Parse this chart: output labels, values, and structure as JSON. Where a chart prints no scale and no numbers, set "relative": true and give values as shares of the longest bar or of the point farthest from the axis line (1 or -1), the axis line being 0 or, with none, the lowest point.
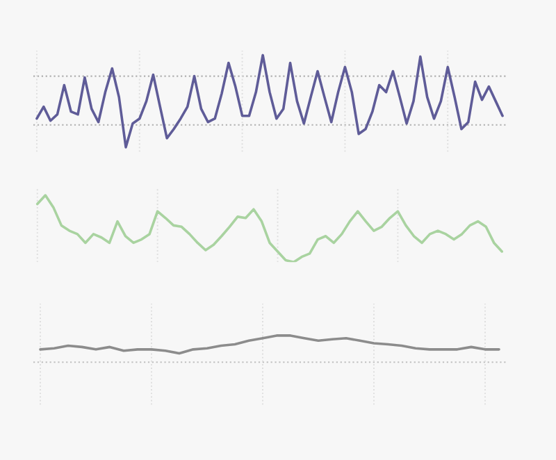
{
  "chart_data": [
    {
      "type": "line",
      "relative": true,
      "categories": [
        null,
        null,
        null,
        null,
        null,
        null,
        null,
        null,
        null,
        null,
        null,
        null,
        null,
        null,
        null,
        null,
        null,
        null,
        null,
        null,
        null,
        null,
        null,
        null,
        null,
        null,
        null,
        null,
        null,
        null,
        null,
        null,
        null,
        null,
        null,
        null,
        null,
        null,
        null,
        null,
        null,
        null,
        null,
        null,
        null,
        null,
        null,
        null,
        null,
        null,
        null,
        null,
        null,
        null,
        null,
        null,
        null,
        null,
        null,
        null,
        null,
        null,
        null,
        null,
        null,
        null,
        null,
        null,
        null
      ],
      "series": [
        {
          "color": "#5f5c98",
          "values": [
            0.09,
            0.26,
            0.06,
            0.15,
            0.57,
            0.19,
            0.15,
            0.68,
            0.23,
            0.04,
            0.47,
            0.81,
            0.4,
            -0.32,
            0.02,
            0.09,
            0.34,
            0.72,
            0.26,
            -0.19,
            -0.06,
            0.09,
            0.26,
            0.7,
            0.23,
            0.04,
            0.09,
            0.45,
            0.89,
            0.55,
            0.13,
            0.13,
            0.47,
            1,
            0.47,
            0.09,
            0.23,
            0.89,
            0.34,
            0.02,
            0.4,
            0.77,
            0.4,
            0.04,
            0.47,
            0.83,
            0.47,
            -0.13,
            -0.06,
            0.19,
            0.57,
            0.47,
            0.77,
            0.4,
            0.02,
            0.34,
            0.98,
            0.4,
            0.09,
            0.34,
            0.83,
            0.4,
            -0.06,
            0.04,
            0.62,
            0.36,
            0.55,
            0.34,
            0.13
          ]
        }
      ],
      "grid": "x",
      "ref_lines": [
        {
          "axis": "y",
          "value": 0,
          "color": "#b0b0b0",
          "line_style": "dotted"
        },
        {
          "axis": "y",
          "value": 0.7,
          "color": "#b0b0b0",
          "line_style": "dotted"
        }
      ]
    },
    {
      "type": "line",
      "relative": true,
      "categories": [
        null,
        null,
        null,
        null,
        null,
        null,
        null,
        null,
        null,
        null,
        null,
        null,
        null,
        null,
        null,
        null,
        null,
        null,
        null,
        null,
        null,
        null,
        null,
        null,
        null,
        null,
        null,
        null,
        null,
        null,
        null,
        null,
        null,
        null,
        null,
        null,
        null,
        null,
        null,
        null,
        null,
        null,
        null,
        null,
        null,
        null,
        null,
        null,
        null,
        null,
        null,
        null,
        null,
        null,
        null,
        null,
        null,
        null,
        null
      ],
      "series": [
        {
          "color": "#a9d3a0",
          "values": [
            0.87,
            1,
            0.82,
            0.55,
            0.47,
            0.42,
            0.29,
            0.42,
            0.37,
            0.29,
            0.61,
            0.39,
            0.29,
            0.34,
            0.42,
            0.76,
            0.66,
            0.55,
            0.53,
            0.42,
            0.29,
            0.18,
            0.26,
            0.39,
            0.53,
            0.68,
            0.66,
            0.79,
            0.61,
            0.29,
            0.16,
            0.03,
            0,
            0.08,
            0.13,
            0.34,
            0.39,
            0.29,
            0.42,
            0.61,
            0.76,
            0.61,
            0.47,
            0.53,
            0.66,
            0.76,
            0.55,
            0.39,
            0.29,
            0.42,
            0.47,
            0.42,
            0.34,
            0.42,
            0.55,
            0.61,
            0.53,
            0.29,
            0.16
          ]
        }
      ],
      "grid": "x"
    },
    {
      "type": "line",
      "relative": true,
      "categories": [
        null,
        null,
        null,
        null,
        null,
        null,
        null,
        null,
        null,
        null,
        null,
        null,
        null,
        null,
        null,
        null,
        null,
        null,
        null,
        null,
        null,
        null,
        null,
        null,
        null,
        null,
        null,
        null,
        null,
        null,
        null,
        null,
        null,
        null
      ],
      "series": [
        {
          "color": "#8c8c8c",
          "values": [
            0.48,
            0.52,
            0.62,
            0.57,
            0.48,
            0.57,
            0.43,
            0.48,
            0.48,
            0.43,
            0.33,
            0.48,
            0.52,
            0.62,
            0.67,
            0.81,
            0.9,
            1,
            1,
            0.9,
            0.81,
            0.86,
            0.9,
            0.81,
            0.71,
            0.67,
            0.62,
            0.52,
            0.48,
            0.48,
            0.48,
            0.57,
            0.48,
            0.48
          ]
        }
      ],
      "grid": "x",
      "ref_lines": [
        {
          "axis": "y",
          "value": 0,
          "color": "#c0c0c0",
          "line_style": "dotted"
        }
      ]
    }
  ]
}
